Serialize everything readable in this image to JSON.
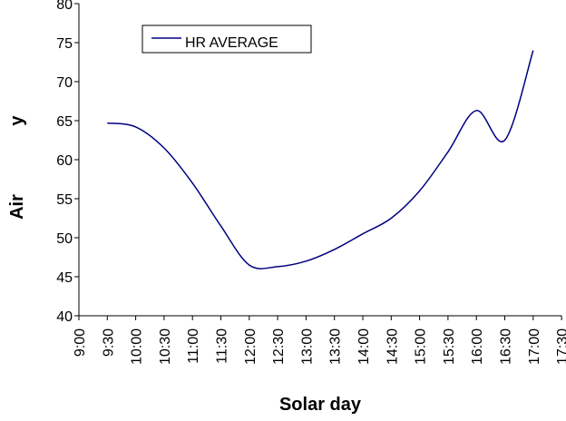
{
  "chart_data": {
    "type": "line",
    "xlabel": "Solar day",
    "ylabel_parts": [
      "Air",
      "y"
    ],
    "categories": [
      "9:00",
      "9:30",
      "10:00",
      "10:30",
      "11:00",
      "11:30",
      "12:00",
      "12:30",
      "13:00",
      "13:30",
      "14:00",
      "14:30",
      "15:00",
      "15:30",
      "16:00",
      "16:30",
      "17:00",
      "17:30"
    ],
    "series": [
      {
        "name": "HR AVERAGE",
        "color": "#000080",
        "values": [
          null,
          64.7,
          64.2,
          61.5,
          57,
          51.5,
          46.5,
          46.3,
          47,
          48.5,
          50.5,
          52.5,
          56,
          61,
          66.3,
          62.5,
          74,
          null
        ]
      }
    ],
    "ylim": [
      40,
      80
    ],
    "yticks": [
      40,
      45,
      50,
      55,
      60,
      65,
      70,
      75,
      80
    ],
    "legend": "top-left"
  }
}
